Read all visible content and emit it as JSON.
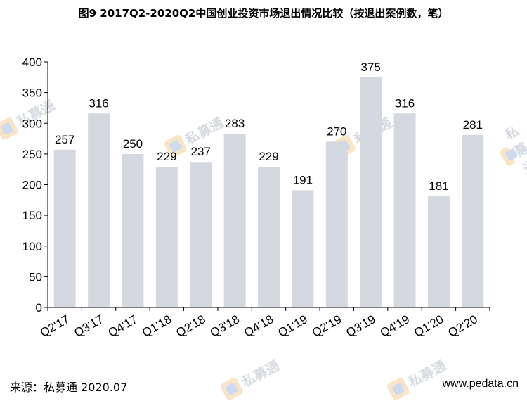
{
  "title": "图9 2017Q2-2020Q2中国创业投资市场退出情况比较（按退出案例数，笔）",
  "source": "来源：私募通 2020.07",
  "site": "www.pedata.cn",
  "watermark": "私募通",
  "colors": {
    "bar": "#d4d9e1",
    "axis": "#000000"
  },
  "chart_data": {
    "type": "bar",
    "title": "图9 2017Q2-2020Q2中国创业投资市场退出情况比较（按退出案例数，笔）",
    "categories": [
      "Q2'17",
      "Q3'17",
      "Q4'17",
      "Q1'18",
      "Q2'18",
      "Q3'18",
      "Q4'18",
      "Q1'19",
      "Q2'19",
      "Q3'19",
      "Q4'19",
      "Q1'20",
      "Q2'20"
    ],
    "values": [
      257,
      316,
      250,
      229,
      237,
      283,
      229,
      191,
      270,
      375,
      316,
      181,
      281
    ],
    "ylim": [
      0,
      400
    ],
    "yticks": [
      0,
      50,
      100,
      150,
      200,
      250,
      300,
      350,
      400
    ],
    "grid": false,
    "legend": "none"
  }
}
